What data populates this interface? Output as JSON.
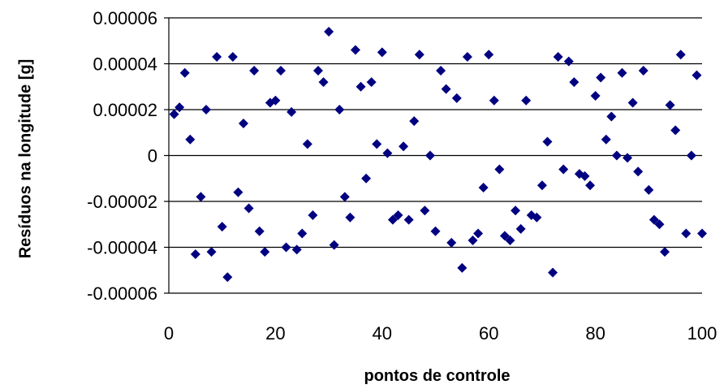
{
  "chart_data": {
    "type": "scatter",
    "title": "",
    "xlabel": "pontos de controle",
    "ylabel": "Resíduos na longitude [g]",
    "xlim": [
      0,
      100
    ],
    "ylim": [
      -6e-05,
      6e-05
    ],
    "xticks": [
      0,
      20,
      40,
      60,
      80,
      100
    ],
    "xtick_labels": [
      "0",
      "20",
      "40",
      "60",
      "80",
      "100"
    ],
    "yticks": [
      6e-05,
      4e-05,
      2e-05,
      0,
      -2e-05,
      -4e-05,
      -6e-05
    ],
    "ytick_labels": [
      "0.00006",
      "0.00004",
      "0.00002",
      "0",
      "-0.00002",
      "-0.00004",
      "-0.00006"
    ],
    "grid": "horizontal",
    "legend": "none",
    "marker": "diamond",
    "marker_color": "#000080",
    "series": [
      {
        "x": [
          1,
          2,
          3,
          4,
          5,
          6,
          7,
          8,
          9,
          10,
          11,
          12,
          13,
          14,
          15,
          16,
          17,
          18,
          19,
          20,
          21,
          22,
          23,
          24,
          25,
          26,
          27,
          28,
          29,
          30,
          31,
          32,
          33,
          34,
          35,
          36,
          37,
          38,
          39,
          40,
          41,
          42,
          43,
          44,
          45,
          46,
          47,
          48,
          49,
          50,
          51,
          52,
          53,
          54,
          55,
          56,
          57,
          58,
          59,
          60,
          61,
          62,
          63,
          64,
          65,
          66,
          67,
          68,
          69,
          70,
          71,
          72,
          73,
          74,
          75,
          76,
          77,
          78,
          79,
          80,
          81,
          82,
          83,
          84,
          85,
          86,
          87,
          88,
          89,
          90,
          91,
          92,
          93,
          94,
          95,
          96,
          97,
          98,
          99,
          100
        ],
        "y": [
          1.8e-05,
          2.1e-05,
          3.6e-05,
          7e-06,
          -4.3e-05,
          -1.8e-05,
          2e-05,
          -4.2e-05,
          4.3e-05,
          -3.1e-05,
          -5.3e-05,
          4.3e-05,
          -1.6e-05,
          1.4e-05,
          -2.3e-05,
          3.7e-05,
          -3.3e-05,
          -4.2e-05,
          2.3e-05,
          2.4e-05,
          3.7e-05,
          -4e-05,
          1.9e-05,
          -4.1e-05,
          -3.4e-05,
          5e-06,
          -2.6e-05,
          3.7e-05,
          3.2e-05,
          5.4e-05,
          -3.9e-05,
          2e-05,
          -1.8e-05,
          -2.7e-05,
          4.6e-05,
          3e-05,
          -1e-05,
          3.2e-05,
          5e-06,
          4.5e-05,
          1e-06,
          -2.8e-05,
          -2.6e-05,
          4e-06,
          -2.8e-05,
          1.5e-05,
          4.4e-05,
          -2.4e-05,
          0.0,
          -3.3e-05,
          3.7e-05,
          2.9e-05,
          -3.8e-05,
          2.5e-05,
          -4.9e-05,
          4.3e-05,
          -3.7e-05,
          -3.4e-05,
          -1.4e-05,
          4.4e-05,
          2.4e-05,
          -6e-06,
          -3.5e-05,
          -3.7e-05,
          -2.4e-05,
          -3.2e-05,
          2.4e-05,
          -2.6e-05,
          -2.7e-05,
          -1.3e-05,
          6e-06,
          -5.1e-05,
          4.3e-05,
          -6e-06,
          4.1e-05,
          3.2e-05,
          -8e-06,
          -9e-06,
          -1.3e-05,
          2.6e-05,
          3.4e-05,
          7e-06,
          1.7e-05,
          0.0,
          3.6e-05,
          -1e-06,
          2.3e-05,
          -7e-06,
          3.7e-05,
          -1.5e-05,
          -2.8e-05,
          -3e-05,
          -4.2e-05,
          2.2e-05,
          1.1e-05,
          4.4e-05,
          -3.4e-05,
          0.0,
          3.5e-05,
          -3.4e-05
        ]
      }
    ]
  }
}
